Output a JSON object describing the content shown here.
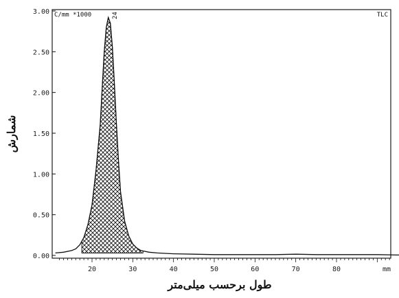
{
  "chart_data": {
    "type": "area",
    "ylabel": "شمارش",
    "xlabel": "طول برحسب میلی‌متر",
    "x_unit": "mm",
    "y_unit_label": "C/mm *1000",
    "corner_tag": "TLC",
    "peak_label": "24",
    "xlim": [
      11,
      97
    ],
    "ylim": [
      0,
      3.0
    ],
    "x_ticks": [
      20,
      30,
      40,
      50,
      60,
      70,
      80
    ],
    "y_ticks": [
      0.0,
      0.5,
      1.0,
      1.5,
      2.0,
      2.5,
      3.0
    ],
    "x_tick_labels": [
      "20",
      "30",
      "40",
      "50",
      "60",
      "70",
      "80"
    ],
    "y_tick_labels": [
      "0.00",
      "0.50",
      "1.00",
      "1.50",
      "2.00",
      "2.50",
      "3.00"
    ],
    "grid": false,
    "series": [
      {
        "x": [
          11,
          13,
          15,
          16,
          17,
          18,
          19,
          20,
          21,
          22,
          22.5,
          23,
          23.5,
          24,
          24.5,
          25,
          25.5,
          26,
          26.5,
          27,
          28,
          29,
          30,
          31,
          32,
          34,
          36,
          40,
          45,
          50,
          55,
          60,
          65,
          70,
          75,
          80,
          85,
          90,
          95,
          97
        ],
        "y": [
          0.03,
          0.04,
          0.06,
          0.08,
          0.13,
          0.22,
          0.38,
          0.62,
          1.05,
          1.6,
          2.05,
          2.5,
          2.8,
          2.92,
          2.85,
          2.55,
          2.1,
          1.6,
          1.15,
          0.78,
          0.42,
          0.24,
          0.14,
          0.09,
          0.06,
          0.04,
          0.03,
          0.02,
          0.015,
          0.01,
          0.01,
          0.01,
          0.01,
          0.015,
          0.01,
          0.01,
          0.01,
          0.01,
          0.005,
          0.005
        ],
        "shaded_x_range": [
          17.5,
          32.5
        ],
        "baseline": 0.03
      }
    ]
  }
}
